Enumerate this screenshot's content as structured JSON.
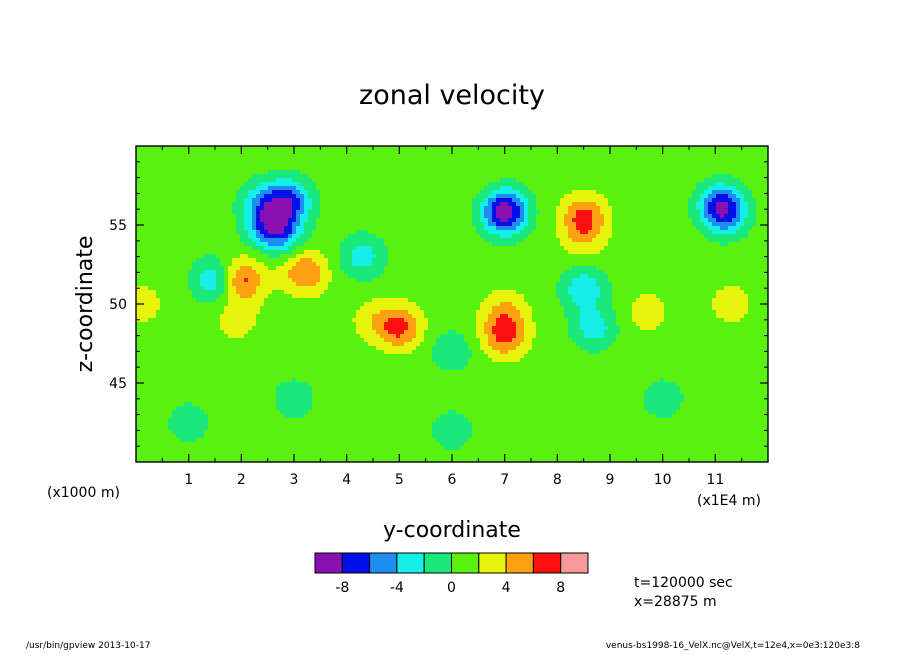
{
  "chart_data": {
    "type": "heatmap",
    "title": "zonal velocity",
    "xlabel": "y-coordinate",
    "ylabel": "z-coordinate",
    "x_unit_left": "(x1000 m)",
    "x_unit_right": "(x1E4 m)",
    "xlim": [
      0,
      12
    ],
    "ylim": [
      40,
      60
    ],
    "x_ticks": [
      1,
      2,
      3,
      4,
      5,
      6,
      7,
      8,
      9,
      10,
      11
    ],
    "y_ticks": [
      45,
      50,
      55
    ],
    "colorbar": {
      "levels": [
        -10,
        -8,
        -6,
        -4,
        -2,
        0,
        2,
        4,
        6,
        8,
        10
      ],
      "tick_labels": [
        "-8",
        "-4",
        "0",
        "4",
        "8"
      ],
      "tick_values": [
        -8,
        -4,
        0,
        4,
        8
      ],
      "colors": [
        "#8b10b0",
        "#0010e8",
        "#1e8cf0",
        "#14f0e8",
        "#1ae87a",
        "#5af010",
        "#e6f40c",
        "#ffa010",
        "#ff1010",
        "#f89898"
      ]
    },
    "field_features": [
      {
        "x": 2.9,
        "y": 56.5,
        "v": -6.5
      },
      {
        "x": 2.5,
        "y": 55.0,
        "v": -5.0
      },
      {
        "x": 2.4,
        "y": 56.5,
        "v": -3.0
      },
      {
        "x": 2.8,
        "y": 54.5,
        "v": -3.5
      },
      {
        "x": 7.0,
        "y": 56.0,
        "v": -6.0
      },
      {
        "x": 7.0,
        "y": 55.5,
        "v": -3.0
      },
      {
        "x": 11.1,
        "y": 56.3,
        "v": -6.0
      },
      {
        "x": 11.2,
        "y": 55.5,
        "v": -3.0
      },
      {
        "x": 4.3,
        "y": 53.0,
        "v": -3.0
      },
      {
        "x": 8.5,
        "y": 51.0,
        "v": -3.5
      },
      {
        "x": 8.7,
        "y": 48.5,
        "v": -3.0
      },
      {
        "x": 1.5,
        "y": 51.5,
        "v": -4.0
      },
      {
        "x": 2.0,
        "y": 51.5,
        "v": 7.0
      },
      {
        "x": 3.2,
        "y": 52.0,
        "v": 6.0
      },
      {
        "x": 5.0,
        "y": 48.5,
        "v": 6.5
      },
      {
        "x": 4.5,
        "y": 49.0,
        "v": 3.0
      },
      {
        "x": 7.0,
        "y": 49.5,
        "v": 4.0
      },
      {
        "x": 7.0,
        "y": 48.0,
        "v": 6.5
      },
      {
        "x": 8.5,
        "y": 55.5,
        "v": 6.5
      },
      {
        "x": 8.5,
        "y": 54.0,
        "v": 3.0
      },
      {
        "x": 9.7,
        "y": 49.5,
        "v": 3.0
      },
      {
        "x": 11.3,
        "y": 50.0,
        "v": 3.0
      },
      {
        "x": 1.9,
        "y": 49.0,
        "v": 3.0
      },
      {
        "x": 0.1,
        "y": 50.0,
        "v": 3.0
      },
      {
        "x": 6.0,
        "y": 47.0,
        "v": -1.5
      },
      {
        "x": 6.0,
        "y": 42.0,
        "v": -1.2
      },
      {
        "x": 3.0,
        "y": 44.0,
        "v": -1.2
      },
      {
        "x": 10.0,
        "y": 44.0,
        "v": -1.2
      },
      {
        "x": 1.0,
        "y": 42.5,
        "v": -1.2
      },
      {
        "x": 6.5,
        "y": 58.5,
        "v": 1.5
      }
    ]
  },
  "notes": {
    "time": "t=120000 sec",
    "xpos": "x=28875 m"
  },
  "footer": {
    "left": "/usr/bin/gpview  2013-10-17",
    "right": "venus-bs1998-16_VelX.nc@VelX,t=12e4,x=0e3:120e3:8"
  }
}
